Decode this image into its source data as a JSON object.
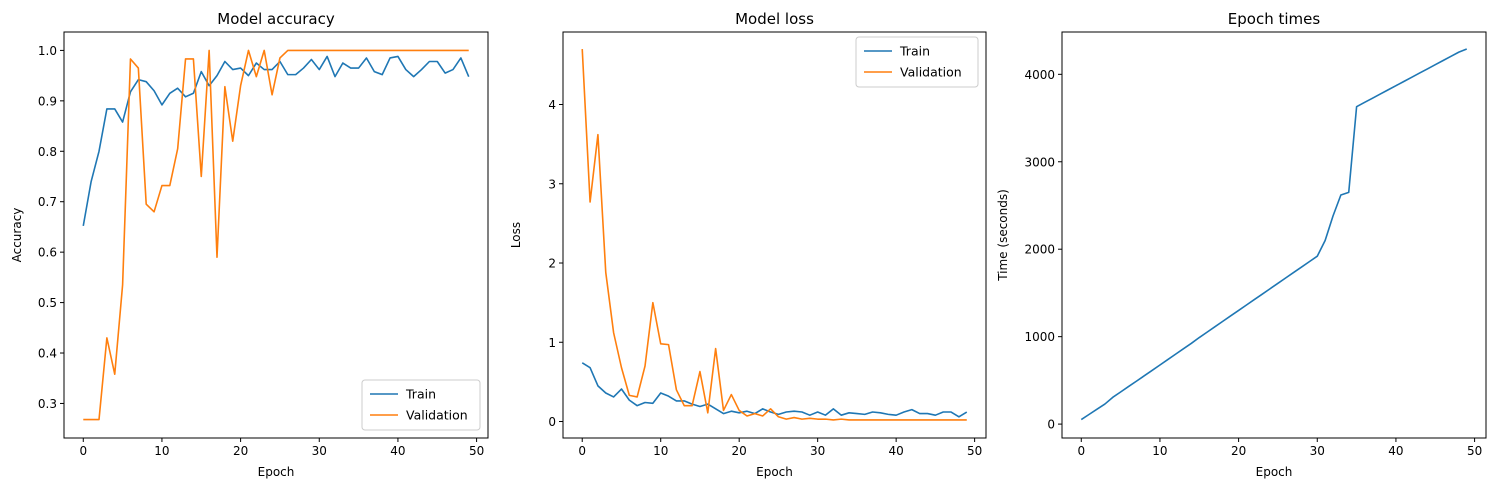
{
  "chart_data": [
    {
      "type": "line",
      "title": "Model accuracy",
      "xlabel": "Epoch",
      "ylabel": "Accuracy",
      "xlim": [
        -2.45,
        51.45
      ],
      "ylim": [
        0.2315,
        1.0365
      ],
      "xticks": [
        0,
        10,
        20,
        30,
        40,
        50
      ],
      "yticks": [
        0.3,
        0.4,
        0.5,
        0.6,
        0.7,
        0.8,
        0.9,
        1.0
      ],
      "ytick_labels": [
        "0.3",
        "0.4",
        "0.5",
        "0.6",
        "0.7",
        "0.8",
        "0.9",
        "1.0"
      ],
      "legend": {
        "placement": "lower-right"
      },
      "series": [
        {
          "name": "Train",
          "color": "#1f77b4",
          "values": [
            0.652,
            0.74,
            0.8,
            0.884,
            0.884,
            0.858,
            0.918,
            0.942,
            0.938,
            0.92,
            0.892,
            0.915,
            0.925,
            0.908,
            0.915,
            0.958,
            0.93,
            0.95,
            0.978,
            0.962,
            0.965,
            0.95,
            0.975,
            0.962,
            0.962,
            0.978,
            0.952,
            0.952,
            0.965,
            0.982,
            0.962,
            0.988,
            0.948,
            0.975,
            0.965,
            0.965,
            0.985,
            0.958,
            0.952,
            0.985,
            0.988,
            0.962,
            0.948,
            0.962,
            0.978,
            0.978,
            0.955,
            0.962,
            0.985,
            0.948
          ]
        },
        {
          "name": "Validation",
          "color": "#ff7f0e",
          "values": [
            0.268,
            0.268,
            0.268,
            0.43,
            0.358,
            0.535,
            0.983,
            0.965,
            0.695,
            0.68,
            0.732,
            0.732,
            0.805,
            0.983,
            0.983,
            0.75,
            1.0,
            0.59,
            0.928,
            0.82,
            0.93,
            1.0,
            0.948,
            1.0,
            0.912,
            0.985,
            1.0,
            1.0,
            1.0,
            1.0,
            1.0,
            1.0,
            1.0,
            1.0,
            1.0,
            1.0,
            1.0,
            1.0,
            1.0,
            1.0,
            1.0,
            1.0,
            1.0,
            1.0,
            1.0,
            1.0,
            1.0,
            1.0,
            1.0,
            1.0
          ]
        }
      ]
    },
    {
      "type": "line",
      "title": "Model loss",
      "xlabel": "Epoch",
      "ylabel": "Loss",
      "xlim": [
        -2.45,
        51.45
      ],
      "ylim": [
        -0.208,
        4.915
      ],
      "xticks": [
        0,
        10,
        20,
        30,
        40,
        50
      ],
      "yticks": [
        0,
        1,
        2,
        3,
        4
      ],
      "ytick_labels": [
        "0",
        "1",
        "2",
        "3",
        "4"
      ],
      "legend": {
        "placement": "upper-right"
      },
      "series": [
        {
          "name": "Train",
          "color": "#1f77b4",
          "values": [
            0.74,
            0.68,
            0.45,
            0.36,
            0.31,
            0.41,
            0.27,
            0.2,
            0.24,
            0.23,
            0.36,
            0.32,
            0.26,
            0.26,
            0.22,
            0.19,
            0.22,
            0.16,
            0.1,
            0.13,
            0.11,
            0.13,
            0.1,
            0.16,
            0.12,
            0.09,
            0.12,
            0.13,
            0.12,
            0.08,
            0.12,
            0.08,
            0.16,
            0.08,
            0.11,
            0.1,
            0.09,
            0.12,
            0.11,
            0.09,
            0.08,
            0.12,
            0.15,
            0.1,
            0.1,
            0.08,
            0.12,
            0.12,
            0.06,
            0.12
          ]
        },
        {
          "name": "Validation",
          "color": "#ff7f0e",
          "values": [
            4.7,
            2.77,
            3.62,
            1.88,
            1.12,
            0.68,
            0.33,
            0.31,
            0.7,
            1.5,
            0.98,
            0.97,
            0.4,
            0.2,
            0.2,
            0.63,
            0.11,
            0.92,
            0.14,
            0.34,
            0.14,
            0.07,
            0.1,
            0.07,
            0.16,
            0.06,
            0.03,
            0.05,
            0.03,
            0.04,
            0.03,
            0.03,
            0.02,
            0.03,
            0.02,
            0.02,
            0.02,
            0.02,
            0.02,
            0.02,
            0.02,
            0.02,
            0.02,
            0.02,
            0.02,
            0.02,
            0.02,
            0.02,
            0.02,
            0.02
          ]
        }
      ]
    },
    {
      "type": "line",
      "title": "Epoch times",
      "xlabel": "Epoch",
      "ylabel": "Time (seconds)",
      "xlim": [
        -2.45,
        51.45
      ],
      "ylim": [
        -159,
        4484
      ],
      "xticks": [
        0,
        10,
        20,
        30,
        40,
        50
      ],
      "yticks": [
        0,
        1000,
        2000,
        3000,
        4000
      ],
      "ytick_labels": [
        "0",
        "1000",
        "2000",
        "3000",
        "4000"
      ],
      "series": [
        {
          "color": "#1f77b4",
          "values": [
            52,
            111,
            170,
            229,
            306,
            367,
            429,
            490,
            552,
            614,
            676,
            738,
            800,
            862,
            924,
            990,
            1052,
            1114,
            1176,
            1238,
            1300,
            1362,
            1424,
            1486,
            1548,
            1610,
            1672,
            1734,
            1796,
            1858,
            1920,
            2100,
            2380,
            2620,
            2650,
            3630,
            3678,
            3726,
            3774,
            3822,
            3870,
            3918,
            3966,
            4014,
            4062,
            4110,
            4158,
            4206,
            4254,
            4290
          ]
        }
      ]
    }
  ]
}
